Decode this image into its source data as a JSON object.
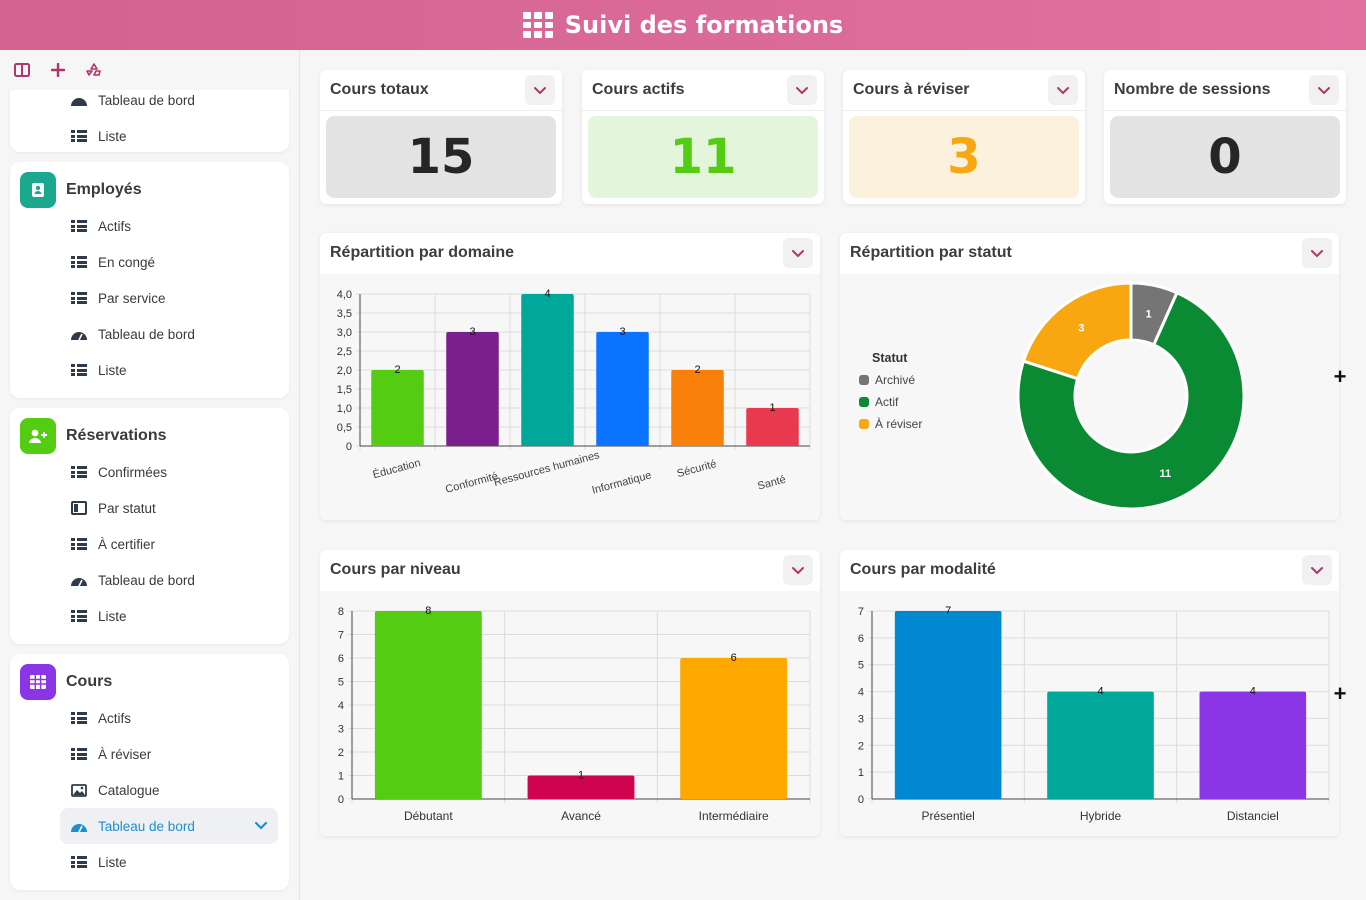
{
  "app": {
    "title": "Suivi des formations"
  },
  "sidebar": {
    "partial_item": "Tableau de bord",
    "top_item": "Liste",
    "sections": [
      {
        "title": "Employés",
        "color": "#1aa88f",
        "items": [
          "Actifs",
          "En congé",
          "Par service",
          "Tableau de bord",
          "Liste"
        ]
      },
      {
        "title": "Réservations",
        "color": "#54cc12",
        "items": [
          "Confirmées",
          "Par statut",
          "À certifier",
          "Tableau de bord",
          "Liste"
        ]
      },
      {
        "title": "Cours",
        "color": "#8a35e6",
        "items": [
          "Actifs",
          "À réviser",
          "Catalogue",
          "Tableau de bord",
          "Liste"
        ]
      }
    ]
  },
  "stats": [
    {
      "title": "Cours totaux",
      "value": "15",
      "bg": "#e3e3e3",
      "fg": "#262626"
    },
    {
      "title": "Cours actifs",
      "value": "11",
      "bg": "#e3f6dc",
      "fg": "#54cc12"
    },
    {
      "title": "Cours à réviser",
      "value": "3",
      "bg": "#fcf1dc",
      "fg": "#f8a710"
    },
    {
      "title": "Nombre de sessions",
      "value": "0",
      "bg": "#e3e3e3",
      "fg": "#262626"
    }
  ],
  "charts_titles": {
    "domaine": "Répartition par domaine",
    "statut": "Répartition par statut",
    "niveau": "Cours par niveau",
    "modalite": "Cours par modalité"
  },
  "chart_data": [
    {
      "type": "bar",
      "title": "Répartition par domaine",
      "categories": [
        "Éducation",
        "Conformité",
        "Ressources humaines",
        "Informatique",
        "Sécurité",
        "Santé"
      ],
      "values": [
        2,
        3,
        4,
        3,
        2,
        1
      ],
      "colors": [
        "#54cc12",
        "#7a1f8c",
        "#00a89a",
        "#0a73ff",
        "#f77f0a",
        "#e8394f"
      ],
      "ylim": [
        0,
        4
      ],
      "yticks": [
        "0",
        "0,5",
        "1,0",
        "1,5",
        "2,0",
        "2,5",
        "3,0",
        "3,5",
        "4,0"
      ],
      "grid": true
    },
    {
      "type": "pie",
      "title": "Répartition par statut",
      "legend_title": "Statut",
      "legend_position": "left",
      "labels": [
        "Archivé",
        "Actif",
        "À réviser"
      ],
      "values": [
        1,
        11,
        3
      ],
      "colors": [
        "#757575",
        "#0a8a32",
        "#f8a710"
      ]
    },
    {
      "type": "bar",
      "title": "Cours par niveau",
      "categories": [
        "Débutant",
        "Avancé",
        "Intermédiaire"
      ],
      "values": [
        8,
        1,
        6
      ],
      "colors": [
        "#54cc12",
        "#d0044e",
        "#ffa800"
      ],
      "ylim": [
        0,
        8
      ],
      "yticks": [
        "0",
        "1",
        "2",
        "3",
        "4",
        "5",
        "6",
        "7",
        "8"
      ],
      "grid": true
    },
    {
      "type": "bar",
      "title": "Cours par modalité",
      "categories": [
        "Présentiel",
        "Hybride",
        "Distanciel"
      ],
      "values": [
        7,
        4,
        4
      ],
      "colors": [
        "#0088d1",
        "#00a89a",
        "#8a35e6"
      ],
      "ylim": [
        0,
        7
      ],
      "yticks": [
        "0",
        "1",
        "2",
        "3",
        "4",
        "5",
        "6",
        "7"
      ],
      "grid": true
    }
  ]
}
